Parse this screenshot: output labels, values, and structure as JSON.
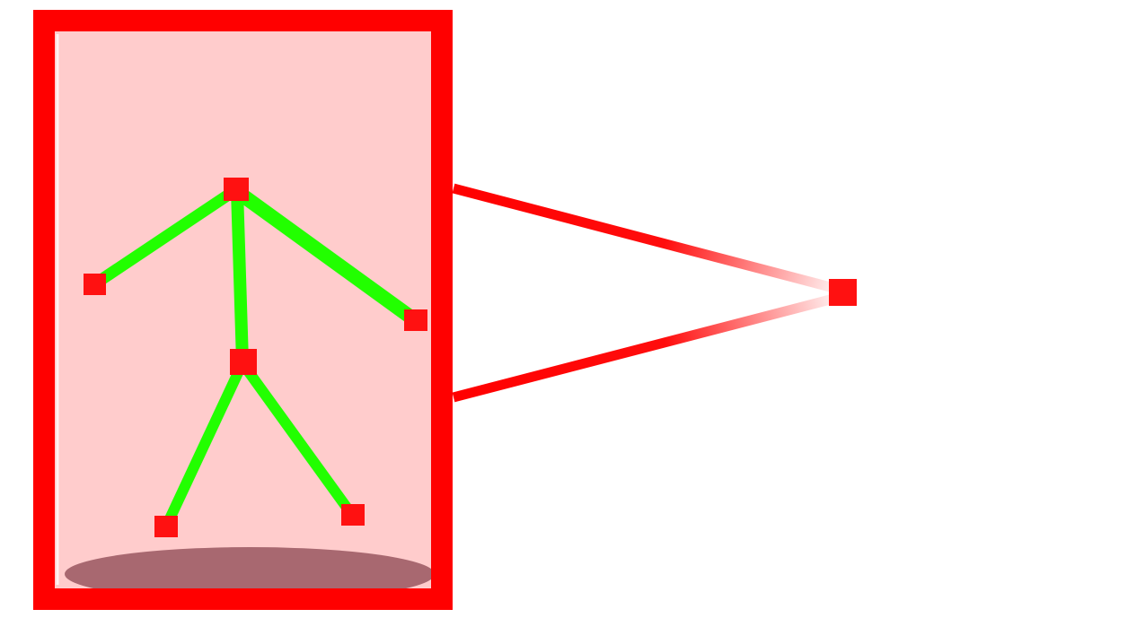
{
  "diagram": {
    "colors": {
      "background": "#ffffff",
      "frame": "#ff0000",
      "frame_fill": "#ffcccc",
      "skeleton_bone": "#22ff00",
      "joint": "#ff1111",
      "shadow": "#a86870",
      "ray": "#ff0000"
    },
    "joints": [
      "head-joint",
      "left-hand-joint",
      "right-hand-joint",
      "hip-joint",
      "left-foot-joint",
      "right-foot-joint",
      "viewpoint-joint"
    ],
    "bones": [
      [
        "head-joint",
        "left-hand-joint"
      ],
      [
        "head-joint",
        "right-hand-joint"
      ],
      [
        "head-joint",
        "hip-joint"
      ],
      [
        "hip-joint",
        "left-foot-joint"
      ],
      [
        "hip-joint",
        "right-foot-joint"
      ]
    ]
  }
}
